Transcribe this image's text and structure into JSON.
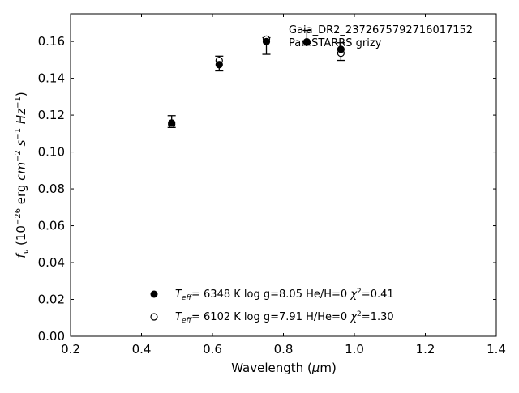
{
  "chart_data": {
    "type": "scatter",
    "annotation": [
      "Gaia_DR2_2372675792716017152",
      "Pan-STARRS grizy"
    ],
    "xlabel": "Wavelength (μm)",
    "ylabel": "f_ν (10^-26 erg cm^-2 s^-1 Hz^-1)",
    "xlim": [
      0.2,
      1.4
    ],
    "ylim": [
      0.0,
      0.175
    ],
    "xticks": [
      0.2,
      0.4,
      0.6,
      0.8,
      1.0,
      1.2,
      1.4
    ],
    "xtick_labels": [
      "0.2",
      "0.4",
      "0.6",
      "0.8",
      "1.0",
      "1.2",
      "1.4"
    ],
    "yticks": [
      0.0,
      0.02,
      0.04,
      0.06,
      0.08,
      0.1,
      0.12,
      0.14,
      0.16
    ],
    "ytick_labels": [
      "0.00",
      "0.02",
      "0.04",
      "0.06",
      "0.08",
      "0.10",
      "0.12",
      "0.14",
      "0.16"
    ],
    "grid": false,
    "legend_position": "bottom-center",
    "observed": {
      "x": [
        0.485,
        0.619,
        0.752,
        0.866,
        0.962
      ],
      "y": [
        0.1165,
        0.148,
        0.1575,
        0.162,
        0.1545
      ],
      "yerr": [
        0.0032,
        0.004,
        0.0045,
        0.004,
        0.0048
      ]
    },
    "series": [
      {
        "marker": "filled",
        "x": [
          0.485,
          0.619,
          0.752,
          0.866,
          0.962
        ],
        "y": [
          0.1157,
          0.1474,
          0.1599,
          0.1596,
          0.1557
        ],
        "legend": {
          "teff": "6348 K",
          "logg": "8.05",
          "comp": "He/H=0",
          "chi2": "0.41"
        }
      },
      {
        "marker": "open",
        "x": [
          0.485,
          0.619,
          0.752,
          0.866,
          0.962
        ],
        "y": [
          0.115,
          0.1496,
          0.1612,
          0.1598,
          0.1536
        ],
        "legend": {
          "teff": "6102 K",
          "logg": "7.91",
          "comp": "H/He=0",
          "chi2": "1.30"
        }
      }
    ]
  }
}
